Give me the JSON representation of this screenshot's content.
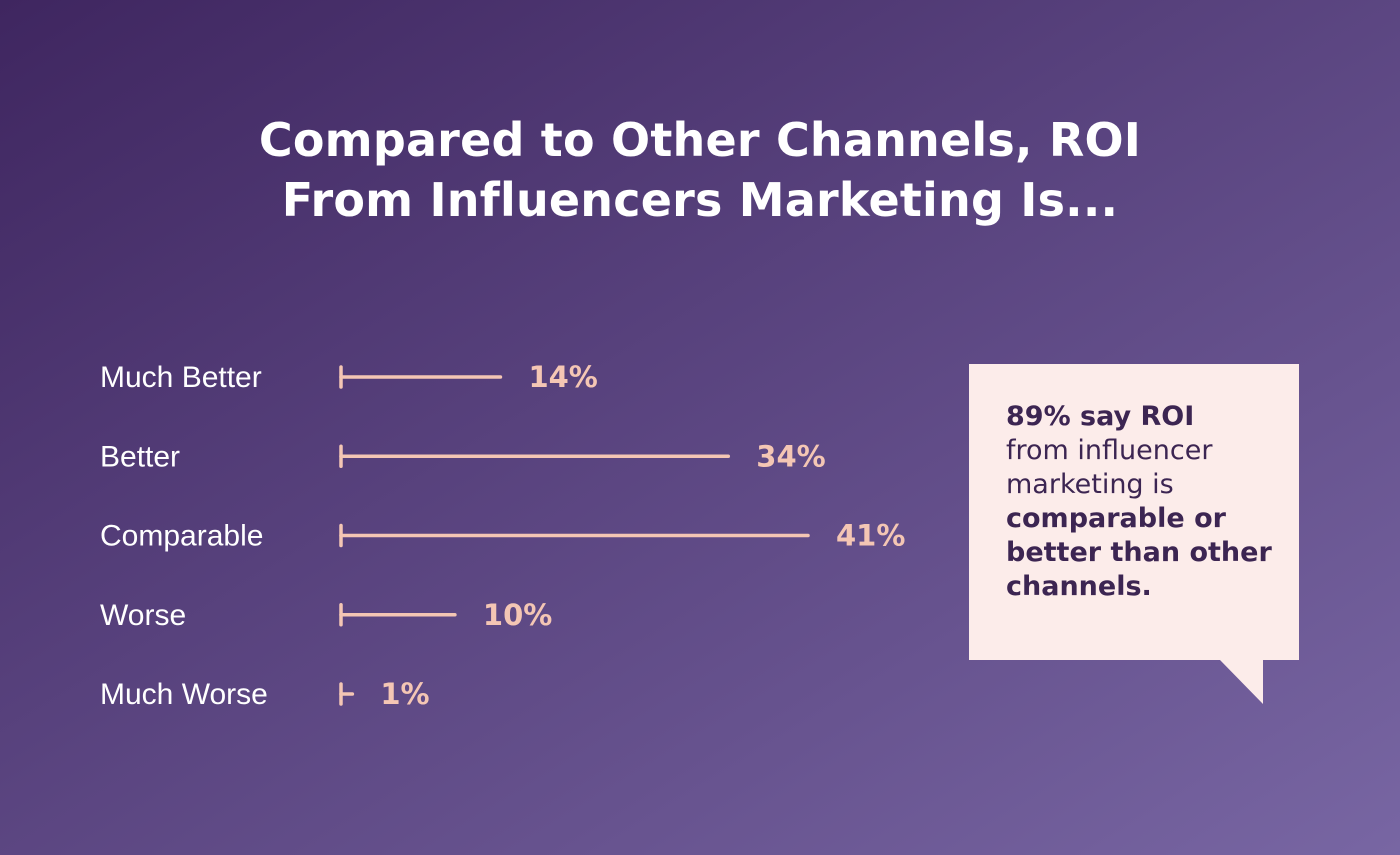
{
  "colors": {
    "background_start": "#3f2660",
    "background_end": "#7866a3",
    "bar": "#f4c6b4",
    "value_label": "#f4c6b4",
    "callout_bg": "#fcecea",
    "callout_text": "#3c2552"
  },
  "title": {
    "line1": "Compared to Other Channels, ROI",
    "line2": "From Influencers Marketing Is..."
  },
  "chart_data": {
    "type": "bar",
    "orientation": "horizontal",
    "categories": [
      "Much Better",
      "Better",
      "Comparable",
      "Worse",
      "Much Worse"
    ],
    "values": [
      14,
      34,
      41,
      10,
      1
    ],
    "value_labels": [
      "14%",
      "34%",
      "41%",
      "10%",
      "1%"
    ],
    "title": "Compared to Other Channels, ROI From Influencers Marketing Is...",
    "xlabel": "",
    "ylabel": "",
    "xlim": [
      0,
      41
    ],
    "grid": false,
    "legend": "none"
  },
  "callout": {
    "line1": "89% say ROI",
    "line2": "from influencer",
    "line3": "marketing is",
    "line4": "comparable or",
    "line5": "better than other",
    "line6": "channels."
  }
}
